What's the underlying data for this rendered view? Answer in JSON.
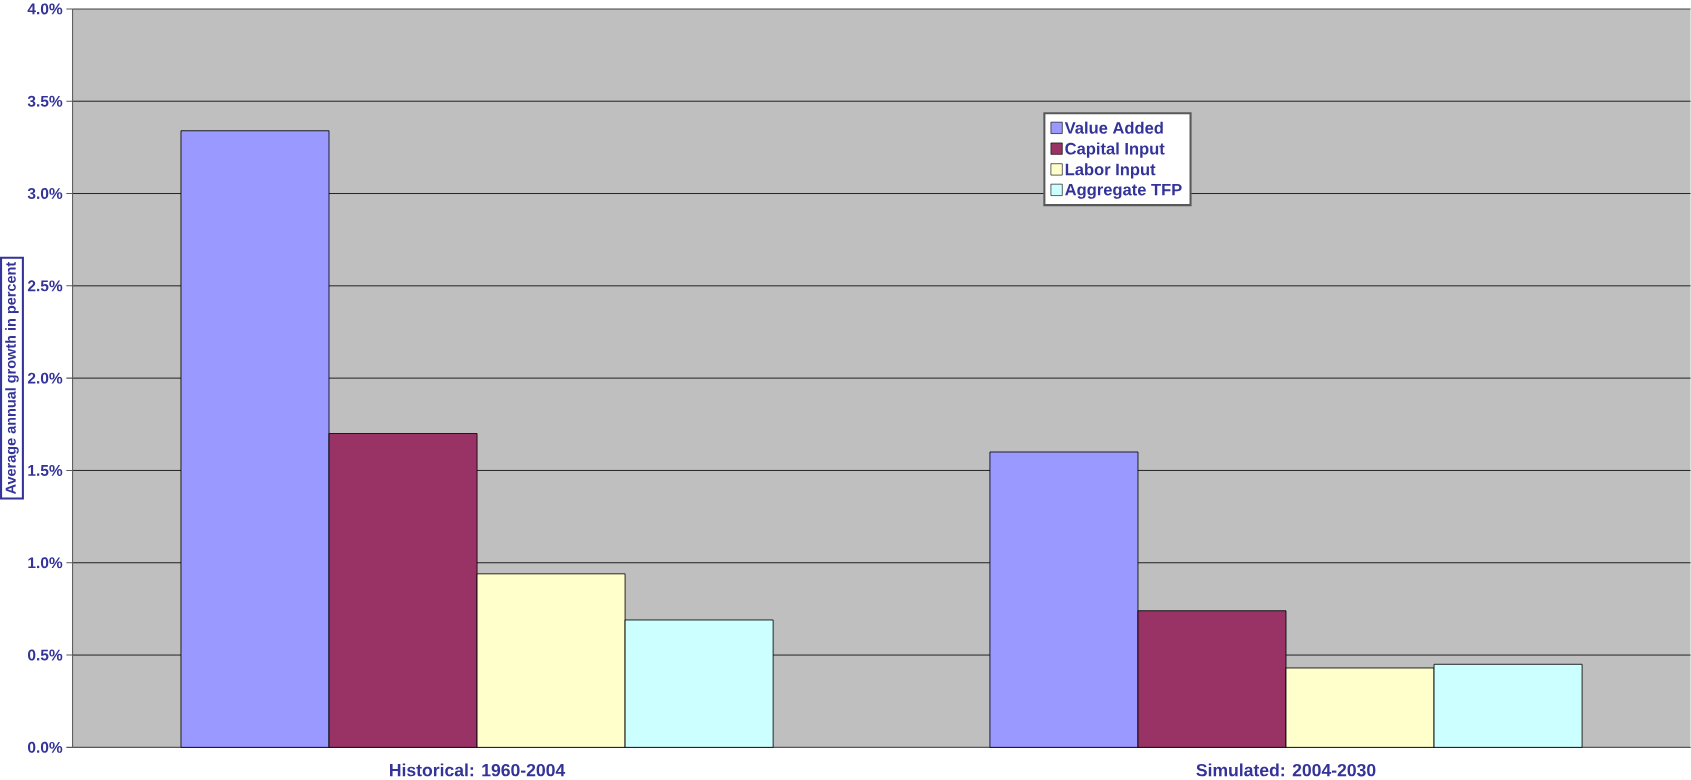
{
  "chart_data": {
    "type": "bar",
    "ylabel": "Average annual growth in percent",
    "categories": [
      "Historical: 1960-2004",
      "Simulated: 2004-2030"
    ],
    "series": [
      {
        "name": "Value Added",
        "color": "#9999ff",
        "values": [
          3.34,
          1.6
        ]
      },
      {
        "name": "Capital Input",
        "color": "#993366",
        "values": [
          1.7,
          0.74
        ]
      },
      {
        "name": "Labor Input",
        "color": "#ffffcc",
        "values": [
          0.94,
          0.43
        ]
      },
      {
        "name": "Aggregate TFP",
        "color": "#ccffff",
        "values": [
          0.69,
          0.45
        ]
      }
    ],
    "ylim": [
      0,
      4
    ],
    "yticks": [
      {
        "value": 0,
        "label": "0.0%"
      },
      {
        "value": 0.5,
        "label": "0.5%"
      },
      {
        "value": 1,
        "label": "1.0%"
      },
      {
        "value": 1.5,
        "label": "1.5%"
      },
      {
        "value": 2,
        "label": "2.0%"
      },
      {
        "value": 2.5,
        "label": "2.5%"
      },
      {
        "value": 3,
        "label": "3.0%"
      },
      {
        "value": 3.5,
        "label": "3.5%"
      },
      {
        "value": 4,
        "label": "4.0%"
      }
    ],
    "grid": "y",
    "legend": "top right"
  }
}
